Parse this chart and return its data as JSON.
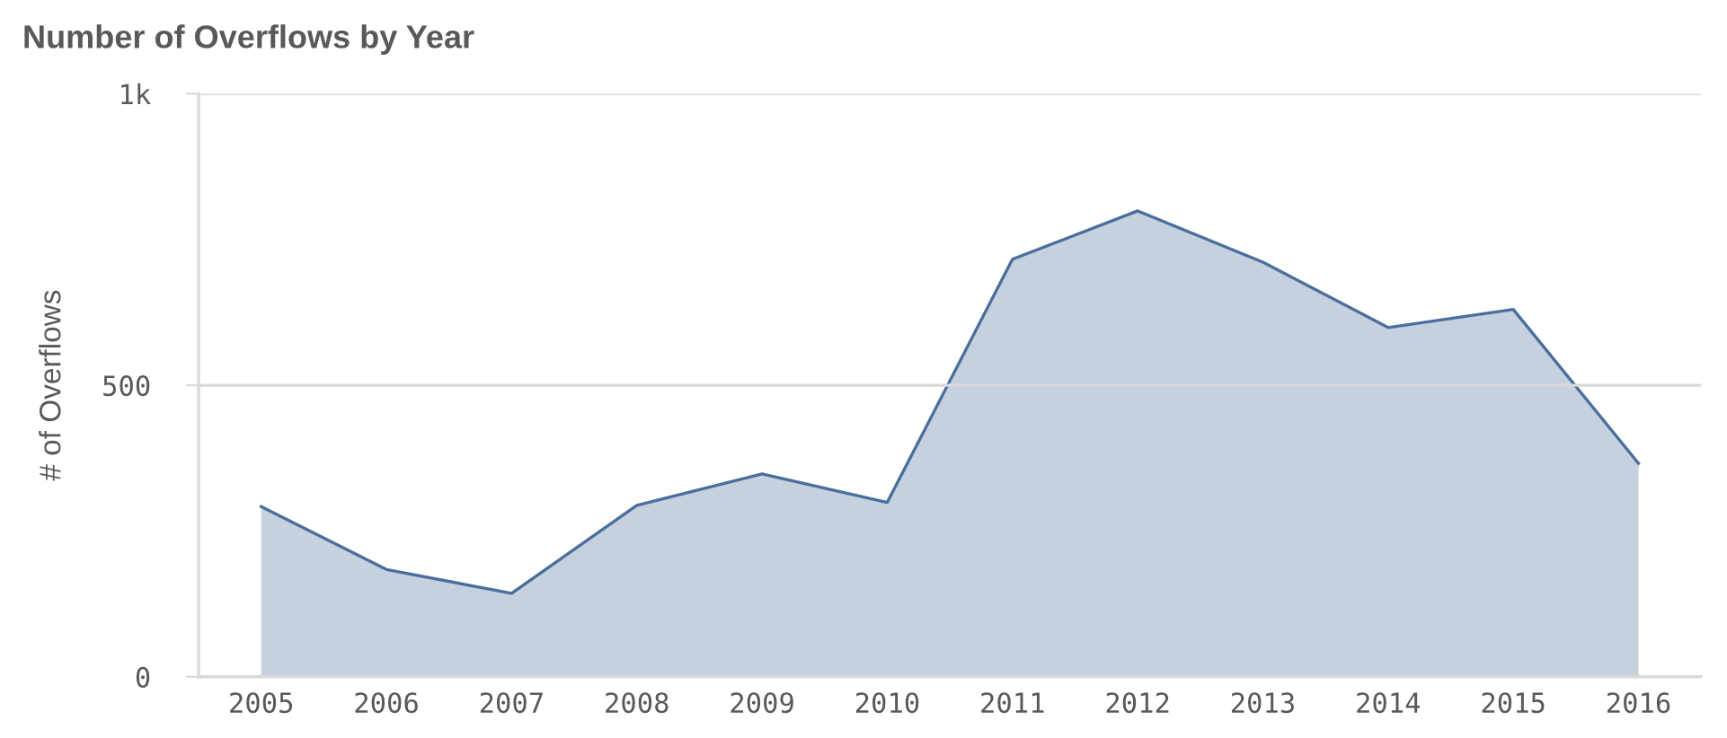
{
  "chart_data": {
    "type": "area",
    "title": "Number of Overflows by Year",
    "ylabel": "# of Overflows",
    "categories": [
      "2005",
      "2006",
      "2007",
      "2008",
      "2009",
      "2010",
      "2011",
      "2012",
      "2013",
      "2014",
      "2015",
      "2016"
    ],
    "series": [
      {
        "color": "#4a6f9c",
        "values": [
          292,
          184,
          143,
          294,
          348,
          299,
          716,
          799,
          711,
          599,
          630,
          366
        ]
      }
    ],
    "ylim": [
      0,
      1000
    ],
    "yticks": [
      0,
      500,
      {
        "value": 1000,
        "label": "1k"
      }
    ],
    "grid": "y",
    "legend": false
  }
}
